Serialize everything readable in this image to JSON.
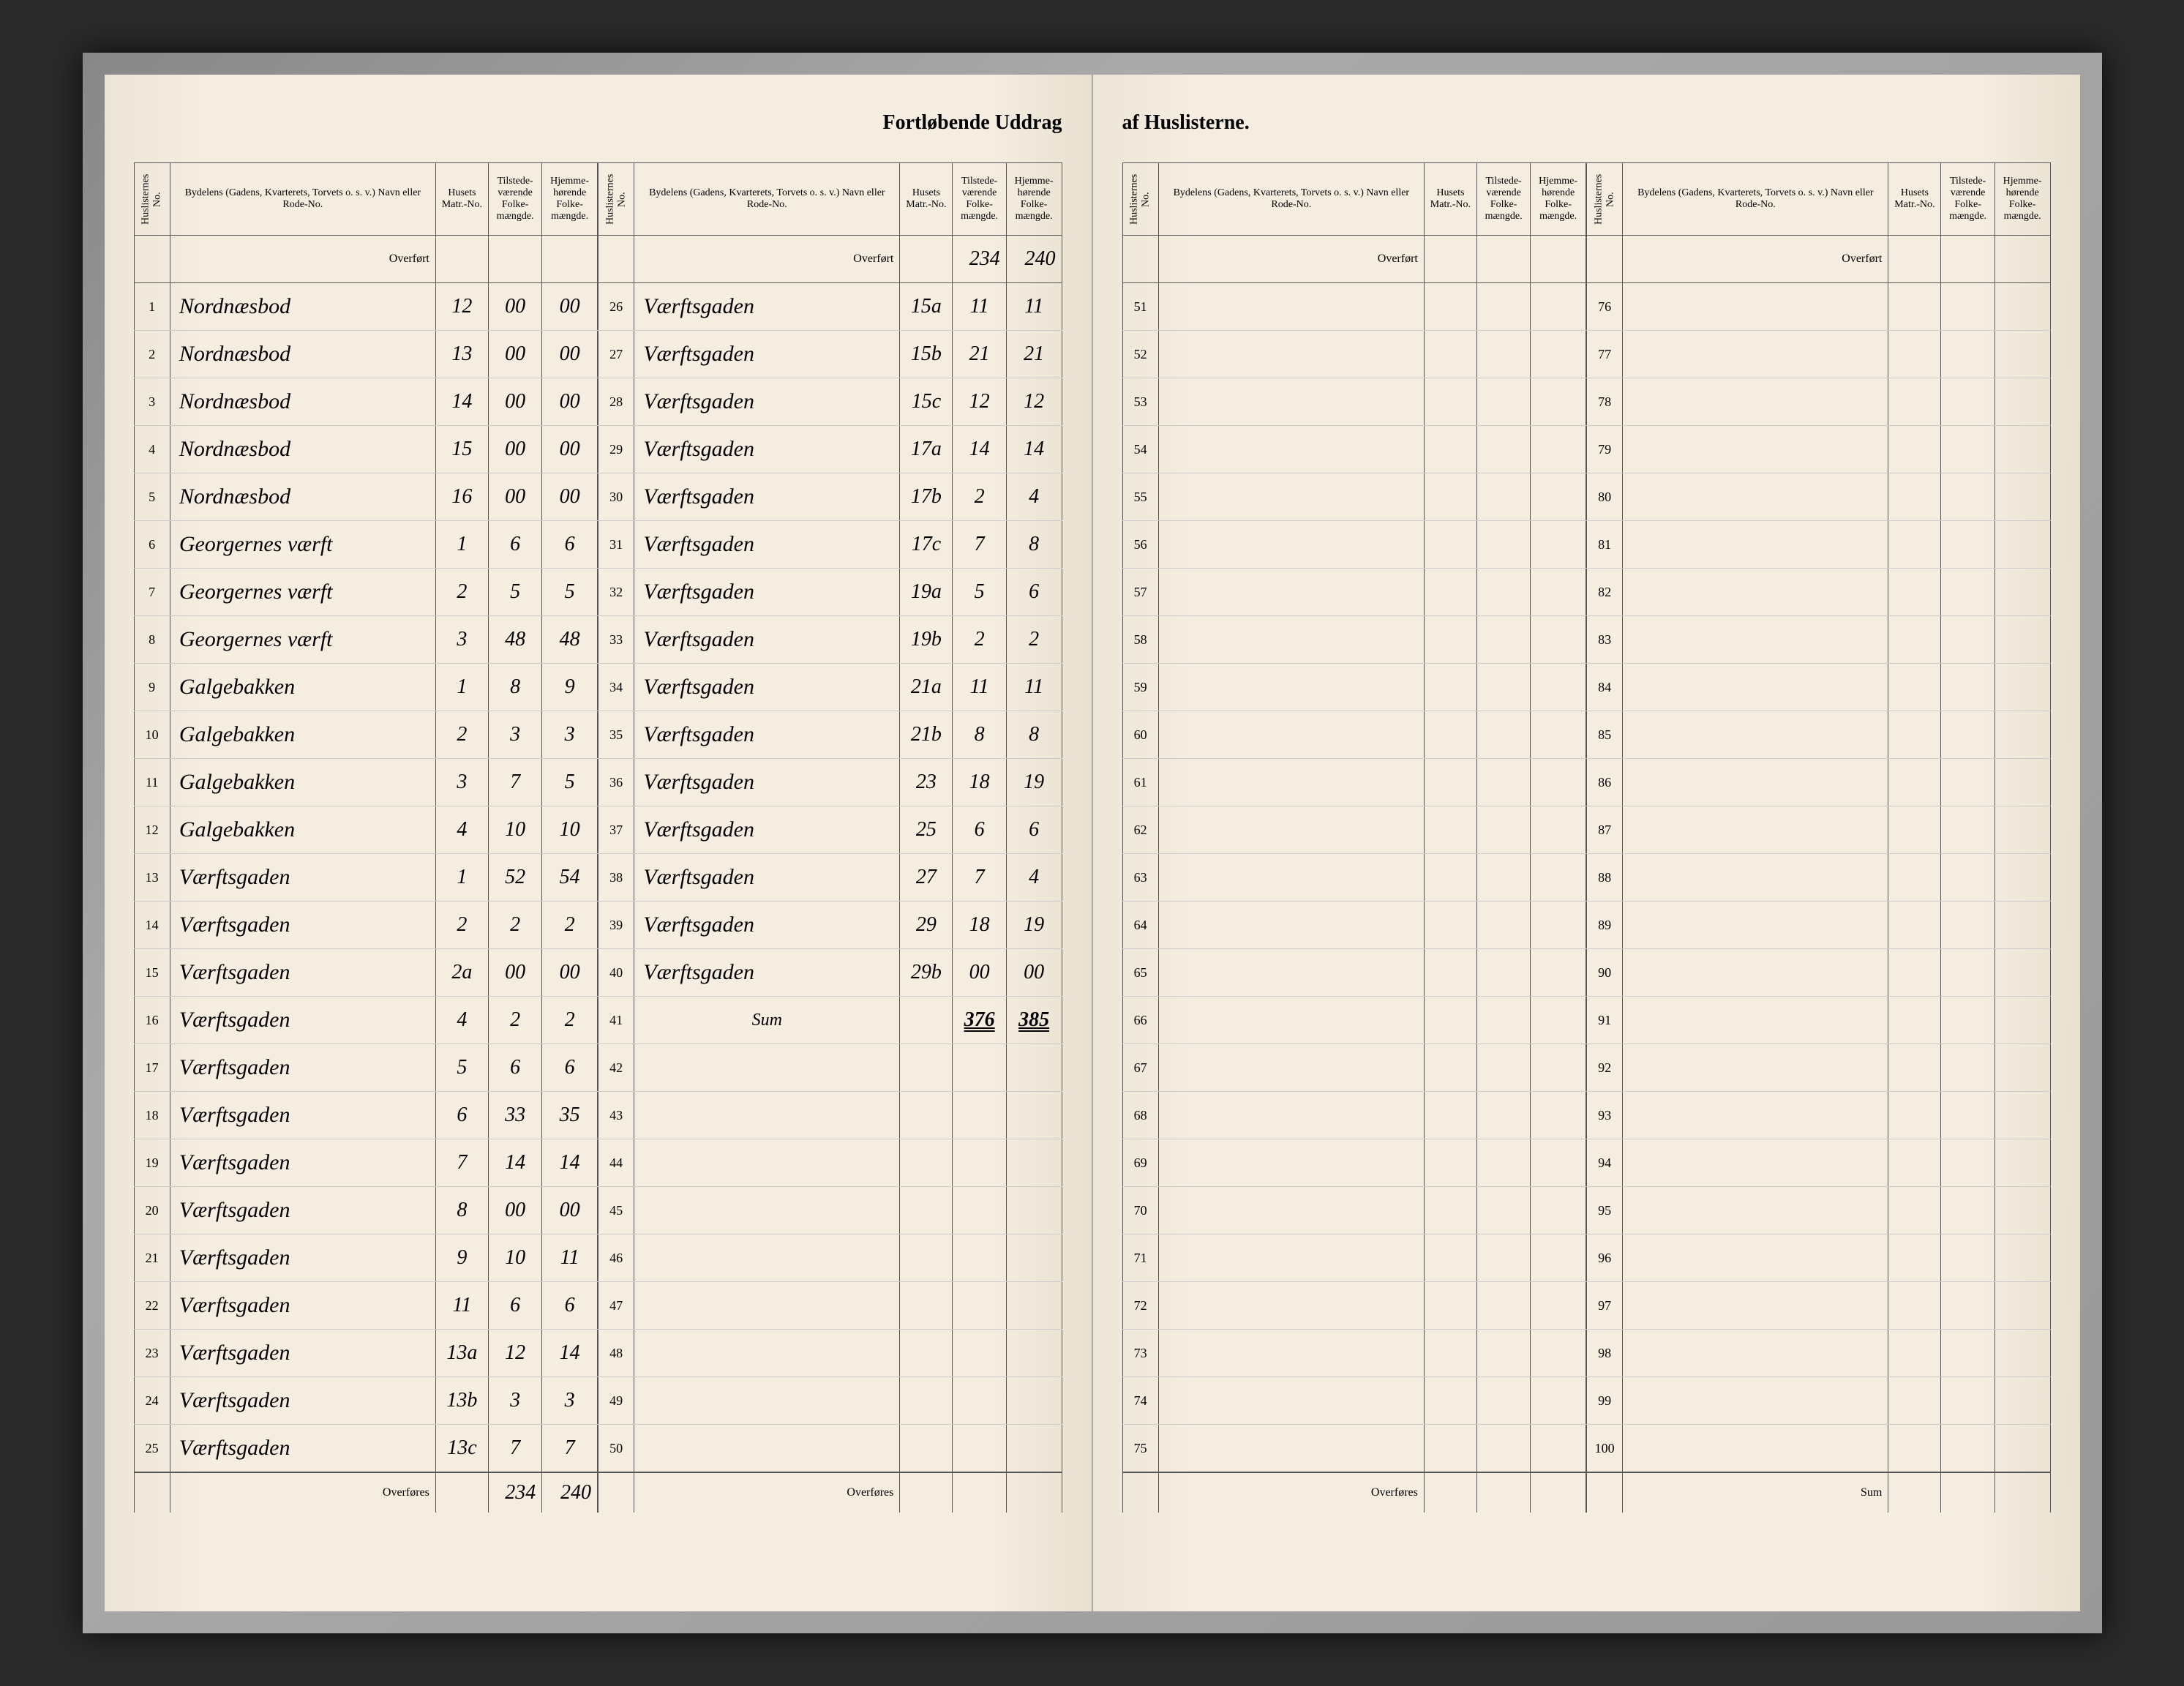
{
  "title_left": "Fortløbende Uddrag",
  "title_right": "af Huslisterne.",
  "headers": {
    "no": "Huslisternes No.",
    "name": "Bydelens (Gadens, Kvarterets, Torvets o. s. v.) Navn eller Rode-No.",
    "matr": "Husets Matr.-No.",
    "tilstede": "Tilstede-værende Folke-mængde.",
    "hjemme": "Hjemme-hørende Folke-mængde."
  },
  "overfort": "Overført",
  "overfores": "Overføres",
  "sum_label": "Sum",
  "col1": {
    "rows": [
      {
        "no": "1",
        "name": "Nordnæsbod",
        "matr": "12",
        "t": "00",
        "h": "00"
      },
      {
        "no": "2",
        "name": "Nordnæsbod",
        "matr": "13",
        "t": "00",
        "h": "00"
      },
      {
        "no": "3",
        "name": "Nordnæsbod",
        "matr": "14",
        "t": "00",
        "h": "00"
      },
      {
        "no": "4",
        "name": "Nordnæsbod",
        "matr": "15",
        "t": "00",
        "h": "00"
      },
      {
        "no": "5",
        "name": "Nordnæsbod",
        "matr": "16",
        "t": "00",
        "h": "00"
      },
      {
        "no": "6",
        "name": "Georgernes værft",
        "matr": "1",
        "t": "6",
        "h": "6"
      },
      {
        "no": "7",
        "name": "Georgernes værft",
        "matr": "2",
        "t": "5",
        "h": "5"
      },
      {
        "no": "8",
        "name": "Georgernes værft",
        "matr": "3",
        "t": "48",
        "h": "48"
      },
      {
        "no": "9",
        "name": "Galgebakken",
        "matr": "1",
        "t": "8",
        "h": "9"
      },
      {
        "no": "10",
        "name": "Galgebakken",
        "matr": "2",
        "t": "3",
        "h": "3"
      },
      {
        "no": "11",
        "name": "Galgebakken",
        "matr": "3",
        "t": "7",
        "h": "5"
      },
      {
        "no": "12",
        "name": "Galgebakken",
        "matr": "4",
        "t": "10",
        "h": "10"
      },
      {
        "no": "13",
        "name": "Værftsgaden",
        "matr": "1",
        "t": "52",
        "h": "54"
      },
      {
        "no": "14",
        "name": "Værftsgaden",
        "matr": "2",
        "t": "2",
        "h": "2"
      },
      {
        "no": "15",
        "name": "Værftsgaden",
        "matr": "2a",
        "t": "00",
        "h": "00"
      },
      {
        "no": "16",
        "name": "Værftsgaden",
        "matr": "4",
        "t": "2",
        "h": "2"
      },
      {
        "no": "17",
        "name": "Værftsgaden",
        "matr": "5",
        "t": "6",
        "h": "6"
      },
      {
        "no": "18",
        "name": "Værftsgaden",
        "matr": "6",
        "t": "33",
        "h": "35"
      },
      {
        "no": "19",
        "name": "Værftsgaden",
        "matr": "7",
        "t": "14",
        "h": "14"
      },
      {
        "no": "20",
        "name": "Værftsgaden",
        "matr": "8",
        "t": "00",
        "h": "00"
      },
      {
        "no": "21",
        "name": "Værftsgaden",
        "matr": "9",
        "t": "10",
        "h": "11"
      },
      {
        "no": "22",
        "name": "Værftsgaden",
        "matr": "11",
        "t": "6",
        "h": "6"
      },
      {
        "no": "23",
        "name": "Værftsgaden",
        "matr": "13a",
        "t": "12",
        "h": "14"
      },
      {
        "no": "24",
        "name": "Værftsgaden",
        "matr": "13b",
        "t": "3",
        "h": "3"
      },
      {
        "no": "25",
        "name": "Værftsgaden",
        "matr": "13c",
        "t": "7",
        "h": "7"
      }
    ],
    "footer_t": "234",
    "footer_h": "240"
  },
  "col2": {
    "overfort_t": "234",
    "overfort_h": "240",
    "rows": [
      {
        "no": "26",
        "name": "Værftsgaden",
        "matr": "15a",
        "t": "11",
        "h": "11"
      },
      {
        "no": "27",
        "name": "Værftsgaden",
        "matr": "15b",
        "t": "21",
        "h": "21"
      },
      {
        "no": "28",
        "name": "Værftsgaden",
        "matr": "15c",
        "t": "12",
        "h": "12"
      },
      {
        "no": "29",
        "name": "Værftsgaden",
        "matr": "17a",
        "t": "14",
        "h": "14"
      },
      {
        "no": "30",
        "name": "Værftsgaden",
        "matr": "17b",
        "t": "2",
        "h": "4"
      },
      {
        "no": "31",
        "name": "Værftsgaden",
        "matr": "17c",
        "t": "7",
        "h": "8"
      },
      {
        "no": "32",
        "name": "Værftsgaden",
        "matr": "19a",
        "t": "5",
        "h": "6"
      },
      {
        "no": "33",
        "name": "Værftsgaden",
        "matr": "19b",
        "t": "2",
        "h": "2"
      },
      {
        "no": "34",
        "name": "Værftsgaden",
        "matr": "21a",
        "t": "11",
        "h": "11"
      },
      {
        "no": "35",
        "name": "Værftsgaden",
        "matr": "21b",
        "t": "8",
        "h": "8"
      },
      {
        "no": "36",
        "name": "Værftsgaden",
        "matr": "23",
        "t": "18",
        "h": "19"
      },
      {
        "no": "37",
        "name": "Værftsgaden",
        "matr": "25",
        "t": "6",
        "h": "6"
      },
      {
        "no": "38",
        "name": "Værftsgaden",
        "matr": "27",
        "t": "7",
        "h": "4"
      },
      {
        "no": "39",
        "name": "Værftsgaden",
        "matr": "29",
        "t": "18",
        "h": "19"
      },
      {
        "no": "40",
        "name": "Værftsgaden",
        "matr": "29b",
        "t": "00",
        "h": "00"
      }
    ],
    "sum_t": "376",
    "sum_h": "385",
    "empty_start": 41,
    "empty_end": 50
  },
  "col3": {
    "empty_start": 51,
    "empty_end": 75
  },
  "col4": {
    "empty_start": 76,
    "empty_end": 100
  }
}
